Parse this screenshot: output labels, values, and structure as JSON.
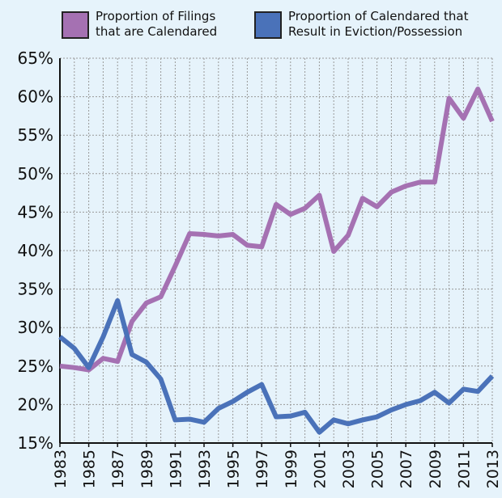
{
  "chart_data": {
    "type": "line",
    "x": [
      1983,
      1984,
      1985,
      1986,
      1987,
      1988,
      1989,
      1990,
      1991,
      1992,
      1993,
      1994,
      1995,
      1996,
      1997,
      1998,
      1999,
      2000,
      2001,
      2002,
      2003,
      2004,
      2005,
      2006,
      2007,
      2008,
      2009,
      2010,
      2011,
      2012,
      2013
    ],
    "series": [
      {
        "name": "Proportion of Filings that are Calendared",
        "color": "#a571b2",
        "values": [
          25.0,
          24.8,
          24.5,
          26.0,
          25.6,
          30.8,
          33.2,
          34.0,
          38.0,
          42.2,
          42.1,
          41.9,
          42.1,
          40.7,
          40.5,
          46.0,
          44.7,
          45.5,
          47.2,
          39.9,
          42.0,
          46.8,
          45.7,
          47.6,
          48.4,
          48.9,
          48.9,
          59.8,
          57.2,
          61.0,
          56.8
        ]
      },
      {
        "name": "Proportion of Calendared that Result in Eviction/Possession",
        "color": "#4a72b9",
        "values": [
          28.8,
          27.3,
          24.8,
          28.8,
          33.5,
          26.5,
          25.5,
          23.3,
          18.0,
          18.1,
          17.7,
          19.5,
          20.4,
          21.6,
          22.6,
          18.4,
          18.5,
          19.0,
          16.4,
          18.0,
          17.5,
          18.0,
          18.4,
          19.3,
          20.0,
          20.5,
          21.6,
          20.2,
          22.0,
          21.7,
          23.7
        ]
      }
    ],
    "xlim": [
      1983,
      2013
    ],
    "xticks": [
      1983,
      1985,
      1987,
      1989,
      1991,
      1993,
      1995,
      1997,
      1999,
      2001,
      2003,
      2005,
      2007,
      2009,
      2011,
      2013
    ],
    "ylim": [
      15,
      65
    ],
    "yticks": [
      {
        "value": 15,
        "label": "15%"
      },
      {
        "value": 20,
        "label": "20%"
      },
      {
        "value": 25,
        "label": "25%"
      },
      {
        "value": 30,
        "label": "30%"
      },
      {
        "value": 35,
        "label": "35%"
      },
      {
        "value": 40,
        "label": "40%"
      },
      {
        "value": 45,
        "label": "45%"
      },
      {
        "value": 50,
        "label": "50%"
      },
      {
        "value": 55,
        "label": "55%"
      },
      {
        "value": 60,
        "label": "60%"
      },
      {
        "value": 65,
        "label": "65%"
      }
    ],
    "grid": true,
    "legend": "top"
  }
}
